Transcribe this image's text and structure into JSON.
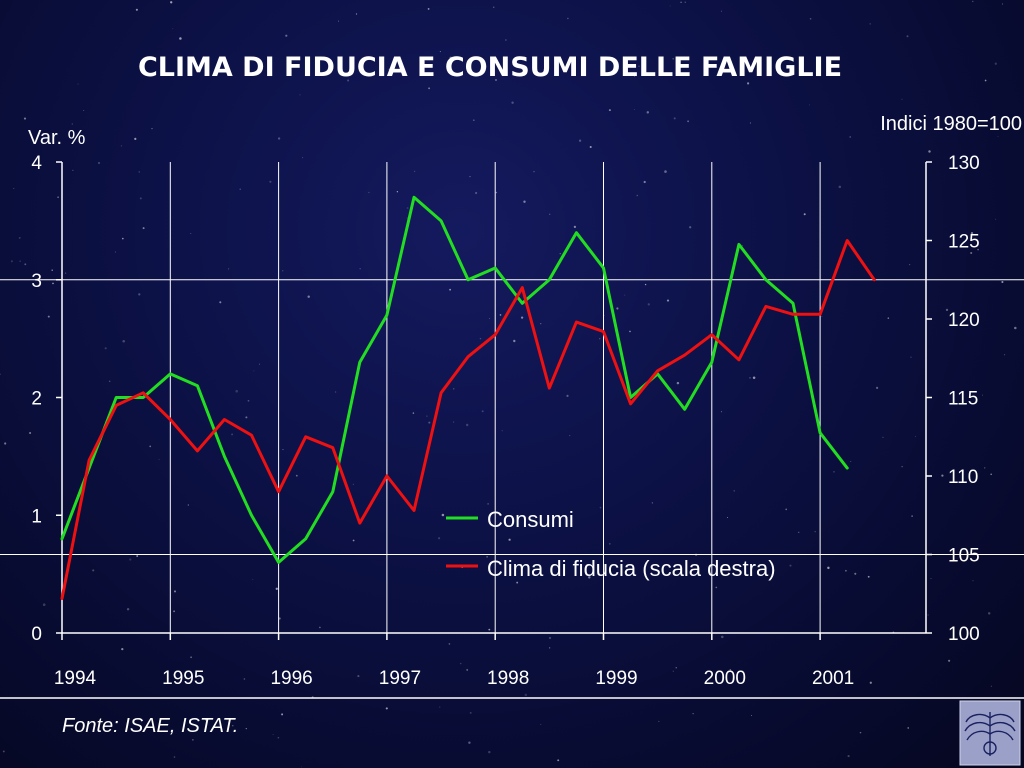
{
  "title": "CLIMA DI FIDUCIA E CONSUMI DELLE FAMIGLIE",
  "source": "Fonte: ISAE, ISTAT.",
  "chart_data": {
    "type": "line",
    "left_axis": {
      "label": "Var. %",
      "min": 0,
      "max": 4,
      "ticks": [
        0,
        1,
        2,
        3,
        4
      ]
    },
    "right_axis": {
      "label": "Indici 1980=100",
      "min": 100,
      "max": 130,
      "ticks": [
        100,
        105,
        110,
        115,
        120,
        125,
        130
      ]
    },
    "x_ticks": [
      "1994",
      "1995",
      "1996",
      "1997",
      "1998",
      "1999",
      "2000",
      "2001"
    ],
    "grid": true,
    "legend_position": "bottom-center",
    "series": [
      {
        "name": "Consumi",
        "axis": "left",
        "color": "#22dd22",
        "points": [
          [
            "1994.00",
            0.8
          ],
          [
            "1994.25",
            1.4
          ],
          [
            "1994.50",
            2.0
          ],
          [
            "1994.75",
            2.0
          ],
          [
            "1995.00",
            2.2
          ],
          [
            "1995.25",
            2.1
          ],
          [
            "1995.50",
            1.5
          ],
          [
            "1995.75",
            1.0
          ],
          [
            "1996.00",
            0.6
          ],
          [
            "1996.25",
            0.8
          ],
          [
            "1996.50",
            1.2
          ],
          [
            "1996.75",
            2.3
          ],
          [
            "1997.00",
            2.7
          ],
          [
            "1997.25",
            3.7
          ],
          [
            "1997.50",
            3.5
          ],
          [
            "1997.75",
            3.0
          ],
          [
            "1998.00",
            3.1
          ],
          [
            "1998.25",
            2.8
          ],
          [
            "1998.50",
            3.0
          ],
          [
            "1998.75",
            3.4
          ],
          [
            "1999.00",
            3.1
          ],
          [
            "1999.25",
            2.0
          ],
          [
            "1999.50",
            2.2
          ],
          [
            "1999.75",
            1.9
          ],
          [
            "2000.00",
            2.3
          ],
          [
            "2000.25",
            3.3
          ],
          [
            "2000.50",
            3.0
          ],
          [
            "2000.75",
            2.8
          ],
          [
            "2001.00",
            1.7
          ],
          [
            "2001.25",
            1.4
          ]
        ]
      },
      {
        "name": "Clima di fiducia (scala destra)",
        "axis": "right",
        "color": "#ee1111",
        "points": [
          [
            "1994.00",
            102.2
          ],
          [
            "1994.25",
            111.0
          ],
          [
            "1994.50",
            114.5
          ],
          [
            "1994.75",
            115.3
          ],
          [
            "1995.00",
            113.6
          ],
          [
            "1995.25",
            111.6
          ],
          [
            "1995.50",
            113.6
          ],
          [
            "1995.75",
            112.6
          ],
          [
            "1996.00",
            109.0
          ],
          [
            "1996.25",
            112.5
          ],
          [
            "1996.50",
            111.8
          ],
          [
            "1996.75",
            107.0
          ],
          [
            "1997.00",
            110.0
          ],
          [
            "1997.25",
            107.8
          ],
          [
            "1997.50",
            115.3
          ],
          [
            "1997.75",
            117.6
          ],
          [
            "1998.00",
            119.0
          ],
          [
            "1998.25",
            122.0
          ],
          [
            "1998.50",
            115.6
          ],
          [
            "1998.75",
            119.8
          ],
          [
            "1999.00",
            119.2
          ],
          [
            "1999.25",
            114.6
          ],
          [
            "1999.50",
            116.7
          ],
          [
            "1999.75",
            117.7
          ],
          [
            "2000.00",
            119.0
          ],
          [
            "2000.25",
            117.4
          ],
          [
            "2000.50",
            120.8
          ],
          [
            "2000.75",
            120.3
          ],
          [
            "2001.00",
            120.3
          ],
          [
            "2001.25",
            125.0
          ],
          [
            "2001.50",
            122.5
          ]
        ]
      }
    ]
  },
  "colors": {
    "background": "#0a0f3c",
    "grid": "#ffffff",
    "text": "#ffffff"
  }
}
